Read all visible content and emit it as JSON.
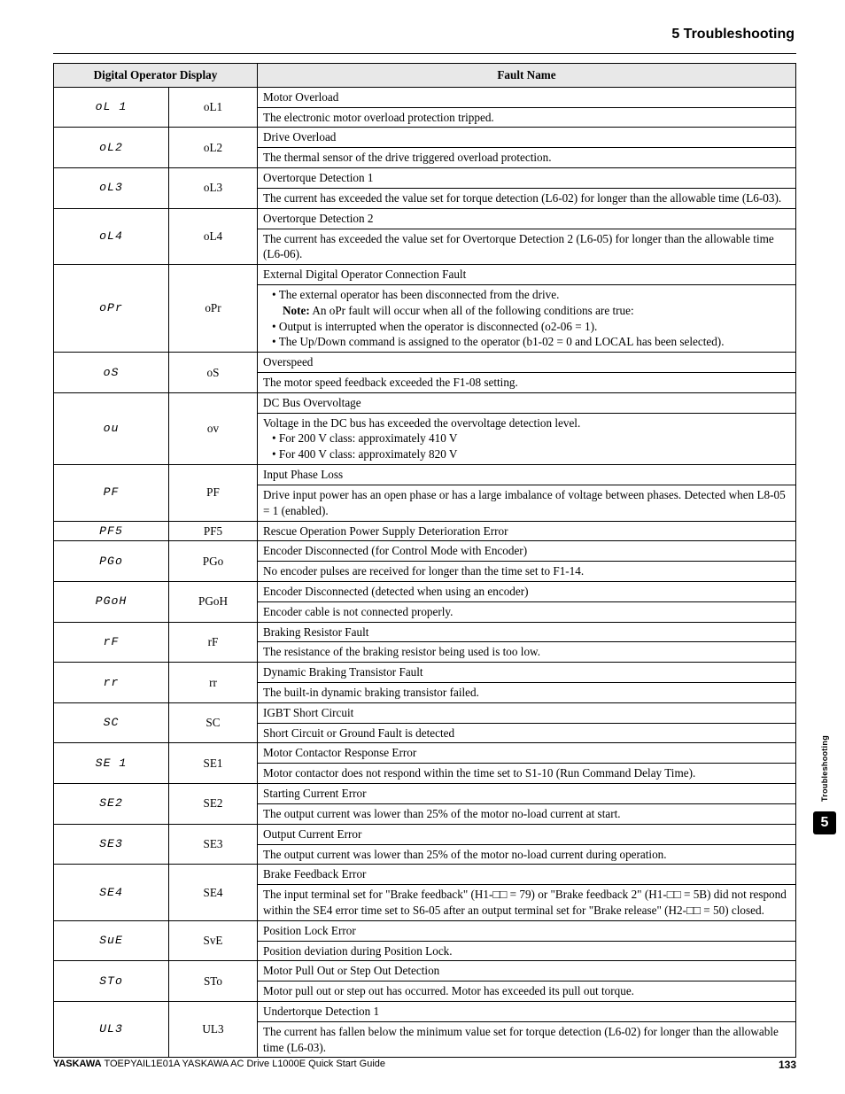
{
  "header": {
    "section": "5  Troubleshooting"
  },
  "table": {
    "headers": {
      "col1": "Digital Operator Display",
      "col2": "Fault Name"
    },
    "rows": [
      {
        "seg": "oL 1",
        "code": "oL1",
        "name": "Motor Overload",
        "desc": "The electronic motor overload protection tripped."
      },
      {
        "seg": "oL2",
        "code": "oL2",
        "name": "Drive Overload",
        "desc": "The thermal sensor of the drive triggered overload protection."
      },
      {
        "seg": "oL3",
        "code": "oL3",
        "name": "Overtorque Detection 1",
        "desc": "The current has exceeded the value set for torque detection (L6-02) for longer than the allowable time (L6-03)."
      },
      {
        "seg": "oL4",
        "code": "oL4",
        "name": "Overtorque Detection 2",
        "desc": "The current has exceeded the value set for Overtorque Detection 2 (L6-05) for longer than the allowable time (L6-06)."
      },
      {
        "seg": "oPr",
        "code": "oPr",
        "name": "External Digital Operator Connection Fault",
        "desc_html": "opr"
      },
      {
        "seg": "oS",
        "code": "oS",
        "name": "Overspeed",
        "desc": "The motor speed feedback exceeded the F1-08 setting."
      },
      {
        "seg": "ou",
        "code": "ov",
        "name": "DC Bus Overvoltage",
        "desc_html": "ov"
      },
      {
        "seg": "PF",
        "code": "PF",
        "name": "Input Phase Loss",
        "desc": "Drive input power has an open phase or has a large imbalance of voltage between phases. Detected when L8-05 = 1 (enabled)."
      },
      {
        "seg": "PF5",
        "code": "PF5",
        "single": true,
        "desc": "Rescue Operation Power Supply Deterioration Error"
      },
      {
        "seg": "PGo",
        "code": "PGo",
        "name": "Encoder Disconnected (for Control Mode with Encoder)",
        "desc": "No encoder pulses are received for longer than the time set to F1-14."
      },
      {
        "seg": "PGoH",
        "code": "PGoH",
        "name": "Encoder Disconnected (detected when using an encoder)",
        "desc": "Encoder cable is not connected properly."
      },
      {
        "seg": "rF",
        "code": "rF",
        "name": "Braking Resistor Fault",
        "desc": "The resistance of the braking resistor being used is too low."
      },
      {
        "seg": "rr",
        "code": "rr",
        "name": "Dynamic Braking Transistor Fault",
        "desc": "The built-in dynamic braking transistor failed."
      },
      {
        "seg": "SC",
        "code": "SC",
        "name": "IGBT Short Circuit",
        "desc": "Short Circuit or Ground Fault is detected"
      },
      {
        "seg": "SE 1",
        "code": "SE1",
        "name": "Motor Contactor Response Error",
        "desc": "Motor contactor does not respond within the time set to S1-10 (Run Command Delay Time)."
      },
      {
        "seg": "SE2",
        "code": "SE2",
        "name": "Starting Current Error",
        "desc": "The output current was lower than 25% of the motor no-load current at start."
      },
      {
        "seg": "SE3",
        "code": "SE3",
        "name": "Output Current Error",
        "desc": "The output current was lower than 25% of the motor no-load current during operation."
      },
      {
        "seg": "SE4",
        "code": "SE4",
        "name": "Brake Feedback Error",
        "desc": "The input terminal set for \"Brake feedback\" (H1-□□ = 79) or \"Brake feedback 2\" (H1-□□ = 5B) did not respond within the SE4 error time set to S6-05 after an output terminal set for \"Brake release\" (H2-□□ = 50) closed."
      },
      {
        "seg": "SuE",
        "code": "SvE",
        "name": "Position Lock Error",
        "desc": "Position deviation during Position Lock."
      },
      {
        "seg": "STo",
        "code": "STo",
        "name": "Motor Pull Out or Step Out Detection",
        "desc": "Motor pull out or step out has occurred. Motor has exceeded its pull out torque."
      },
      {
        "seg": "UL3",
        "code": "UL3",
        "name": "Undertorque Detection 1",
        "desc": "The current has fallen below the minimum value set for torque detection (L6-02) for longer than the allowable time (L6-03)."
      }
    ],
    "opr_bullets": {
      "b1": "The external operator has been disconnected from the drive.",
      "note_label": "Note:",
      "note_text": " An oPr fault will occur when all of the following conditions are true:",
      "b2": "Output is interrupted when the operator is disconnected (o2-06 = 1).",
      "b3": "The Up/Down command is assigned to the operator (b1-02 = 0 and LOCAL has been selected)."
    },
    "ov_lines": {
      "l1": "Voltage in the DC bus has exceeded the overvoltage detection level.",
      "l2": "For 200 V class: approximately 410 V",
      "l3": "For 400 V class: approximately 820 V"
    }
  },
  "sidetab": {
    "label": "Troubleshooting",
    "num": "5"
  },
  "footer": {
    "brand": "YASKAWA",
    "text": " TOEPYAIL1E01A YASKAWA AC Drive L1000E Quick Start Guide",
    "page": "133"
  }
}
